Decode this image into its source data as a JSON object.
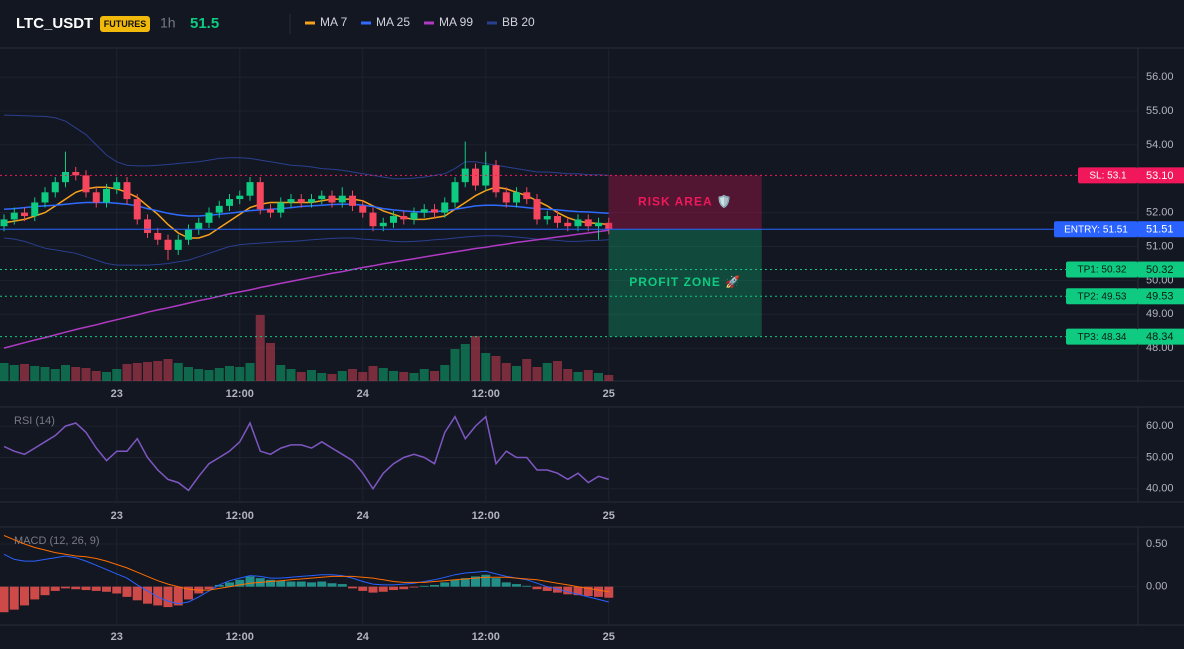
{
  "header": {
    "symbol": "LTC_USDT",
    "badge": "FUTURES",
    "interval": "1h",
    "price": "51.5"
  },
  "chart_data": [
    {
      "type": "candlestick",
      "categories": [
        null,
        null,
        null,
        null,
        null,
        null,
        null,
        null,
        null,
        null,
        null,
        "23",
        null,
        null,
        null,
        null,
        null,
        null,
        null,
        null,
        null,
        null,
        null,
        "12:00",
        null,
        null,
        null,
        null,
        null,
        null,
        null,
        null,
        null,
        null,
        null,
        "24",
        null,
        null,
        null,
        null,
        null,
        null,
        null,
        null,
        null,
        null,
        null,
        "12:00",
        null,
        null,
        null,
        null,
        null,
        null,
        null,
        null,
        null,
        null,
        null,
        "25"
      ],
      "open": [
        51.6,
        51.8,
        52.0,
        51.9,
        52.3,
        52.6,
        52.9,
        53.2,
        53.1,
        52.6,
        52.3,
        52.7,
        52.9,
        52.4,
        51.8,
        51.4,
        51.2,
        50.9,
        51.2,
        51.5,
        51.7,
        52.0,
        52.2,
        52.4,
        52.5,
        52.9,
        52.1,
        52.0,
        52.3,
        52.4,
        52.3,
        52.4,
        52.5,
        52.3,
        52.5,
        52.2,
        52.0,
        51.6,
        51.7,
        51.9,
        51.8,
        52.0,
        52.1,
        52.0,
        52.3,
        52.9,
        53.3,
        52.8,
        53.4,
        52.6,
        52.3,
        52.6,
        52.4,
        51.8,
        51.9,
        51.7,
        51.6,
        51.8,
        51.6,
        51.7
      ],
      "high": [
        51.95,
        52.15,
        52.15,
        52.45,
        52.75,
        53.05,
        53.8,
        53.35,
        53.25,
        52.75,
        52.85,
        53.05,
        53.05,
        52.55,
        51.95,
        51.55,
        51.35,
        51.35,
        51.65,
        51.85,
        52.15,
        52.35,
        52.55,
        52.65,
        53.05,
        53.05,
        52.25,
        52.45,
        52.55,
        52.55,
        52.55,
        52.65,
        52.65,
        52.75,
        52.65,
        52.35,
        52.15,
        51.85,
        52.05,
        52.05,
        52.15,
        52.25,
        52.25,
        52.45,
        53.05,
        54.1,
        53.45,
        53.8,
        53.55,
        52.75,
        52.75,
        52.75,
        52.55,
        52.05,
        52.05,
        51.85,
        51.95,
        51.95,
        51.85,
        51.85
      ],
      "low": [
        51.45,
        51.65,
        51.75,
        51.75,
        52.15,
        52.45,
        52.75,
        52.95,
        52.45,
        52.15,
        52.15,
        52.55,
        52.25,
        51.65,
        51.25,
        51.05,
        50.6,
        50.75,
        51.05,
        51.35,
        51.55,
        51.85,
        52.05,
        52.25,
        52.35,
        51.95,
        51.85,
        51.85,
        52.15,
        52.15,
        52.15,
        52.25,
        52.15,
        52.15,
        52.05,
        51.85,
        51.45,
        51.45,
        51.55,
        51.65,
        51.65,
        51.85,
        51.85,
        51.85,
        52.15,
        52.75,
        52.65,
        52.65,
        52.45,
        52.15,
        52.15,
        52.25,
        51.65,
        51.65,
        51.55,
        51.45,
        51.45,
        51.45,
        51.2,
        51.36
      ],
      "close": [
        51.8,
        52.0,
        51.9,
        52.3,
        52.6,
        52.9,
        53.2,
        53.1,
        52.6,
        52.3,
        52.7,
        52.9,
        52.4,
        51.8,
        51.4,
        51.2,
        50.9,
        51.2,
        51.5,
        51.7,
        52.0,
        52.2,
        52.4,
        52.5,
        52.9,
        52.1,
        52.0,
        52.3,
        52.4,
        52.3,
        52.4,
        52.5,
        52.3,
        52.5,
        52.2,
        52.0,
        51.6,
        51.7,
        51.9,
        51.8,
        52.0,
        52.1,
        52.0,
        52.3,
        52.9,
        53.3,
        52.8,
        53.4,
        52.6,
        52.3,
        52.6,
        52.4,
        51.8,
        51.9,
        51.7,
        51.6,
        51.8,
        51.6,
        51.7,
        51.51
      ],
      "up_color": "#0ecb81",
      "down_color": "#f6465d",
      "volume": [
        18,
        16,
        17,
        15,
        14,
        12,
        16,
        14,
        13,
        10,
        9,
        12,
        17,
        18,
        19,
        20,
        22,
        18,
        14,
        12,
        11,
        13,
        15,
        14,
        18,
        66,
        38,
        16,
        12,
        9,
        11,
        8,
        7,
        10,
        12,
        9,
        15,
        13,
        10,
        9,
        8,
        12,
        10,
        16,
        32,
        37,
        45,
        28,
        25,
        18,
        15,
        22,
        14,
        18,
        20,
        12,
        9,
        11,
        8,
        6
      ],
      "vlim": [
        0,
        100
      ],
      "series": [
        {
          "name": "MA 7",
          "color": "#f7a21b",
          "values": [
            51.7,
            51.75,
            51.8,
            51.9,
            52.0,
            52.2,
            52.4,
            52.6,
            52.7,
            52.75,
            52.75,
            52.7,
            52.6,
            52.45,
            52.2,
            51.95,
            51.65,
            51.4,
            51.25,
            51.25,
            51.35,
            51.55,
            51.75,
            51.95,
            52.15,
            52.25,
            52.3,
            52.3,
            52.3,
            52.3,
            52.3,
            52.35,
            52.4,
            52.4,
            52.4,
            52.35,
            52.2,
            52.05,
            51.95,
            51.85,
            51.8,
            51.8,
            51.85,
            51.9,
            52.1,
            52.3,
            52.5,
            52.65,
            52.75,
            52.7,
            52.6,
            52.5,
            52.35,
            52.2,
            52.0,
            51.85,
            51.75,
            51.7,
            51.68,
            51.65
          ]
        },
        {
          "name": "MA 25",
          "color": "#2f6bff",
          "values": [
            52.1,
            52.12,
            52.15,
            52.18,
            52.2,
            52.22,
            52.25,
            52.28,
            52.3,
            52.3,
            52.3,
            52.28,
            52.25,
            52.2,
            52.12,
            52.05,
            51.98,
            51.93,
            51.9,
            51.9,
            51.92,
            51.95,
            51.98,
            52.02,
            52.06,
            52.08,
            52.1,
            52.12,
            52.15,
            52.18,
            52.2,
            52.22,
            52.24,
            52.25,
            52.25,
            52.22,
            52.18,
            52.12,
            52.08,
            52.05,
            52.03,
            52.02,
            52.03,
            52.05,
            52.1,
            52.15,
            52.2,
            52.22,
            52.22,
            52.2,
            52.18,
            52.15,
            52.12,
            52.1,
            52.08,
            52.05,
            52.03,
            52.02,
            52.0,
            51.98
          ]
        },
        {
          "name": "MA 99",
          "color": "#b03ac4",
          "values": [
            48.0,
            48.08,
            48.16,
            48.24,
            48.31,
            48.39,
            48.47,
            48.55,
            48.62,
            48.69,
            48.77,
            48.84,
            48.91,
            48.98,
            49.06,
            49.13,
            49.19,
            49.26,
            49.33,
            49.4,
            49.46,
            49.53,
            49.6,
            49.66,
            49.72,
            49.79,
            49.85,
            49.91,
            49.97,
            50.03,
            50.09,
            50.15,
            50.21,
            50.26,
            50.32,
            50.38,
            50.43,
            50.49,
            50.54,
            50.59,
            50.64,
            50.69,
            50.74,
            50.79,
            50.84,
            50.89,
            50.94,
            50.98,
            51.03,
            51.07,
            51.12,
            51.16,
            51.2,
            51.24,
            51.28,
            51.32,
            51.36,
            51.4,
            51.44,
            51.48
          ]
        },
        {
          "name": "BB 20",
          "color": "#2a3f8f",
          "values": [
            54.88,
            54.87,
            54.86,
            54.85,
            54.84,
            54.8,
            54.7,
            54.5,
            54.3,
            54.0,
            53.7,
            53.5,
            53.4,
            53.38,
            53.38,
            53.4,
            53.42,
            53.45,
            53.48,
            53.5,
            53.55,
            53.6,
            53.62,
            53.62,
            53.6,
            53.55,
            53.5,
            53.45,
            53.4,
            53.38,
            53.35,
            53.3,
            53.28,
            53.25,
            53.2,
            53.15,
            53.1,
            53.05,
            53.0,
            53.0,
            53.02,
            53.05,
            53.1,
            53.15,
            53.3,
            53.5,
            53.5,
            53.45,
            53.4,
            53.35,
            53.3,
            53.25,
            53.2,
            53.2,
            53.18,
            53.15,
            53.15,
            53.12,
            53.12,
            53.1
          ],
          "lower": [
            51.25,
            51.22,
            51.15,
            51.05,
            50.95,
            50.9,
            50.85,
            50.8,
            50.7,
            50.6,
            50.5,
            50.45,
            50.45,
            50.45,
            50.45,
            50.47,
            50.5,
            50.55,
            50.6,
            50.7,
            50.8,
            50.9,
            51.0,
            51.05,
            51.08,
            51.1,
            51.12,
            51.14,
            51.15,
            51.17,
            51.2,
            51.22,
            51.24,
            51.25,
            51.25,
            51.22,
            51.2,
            51.18,
            51.15,
            51.14,
            51.15,
            51.17,
            51.2,
            51.22,
            51.25,
            51.28,
            51.3,
            51.32,
            51.32,
            51.3,
            51.28,
            51.25,
            51.22,
            51.2,
            51.18,
            51.15,
            51.15,
            51.17,
            51.18,
            51.2
          ]
        }
      ],
      "ylim": [
        47.03,
        56.86
      ],
      "yticks": [
        {
          "value": 48,
          "label": "48.00"
        },
        {
          "value": 49,
          "label": "49.00"
        },
        {
          "value": 50,
          "label": "50.00"
        },
        {
          "value": 51,
          "label": "51.00"
        },
        {
          "value": 52,
          "label": "52.00"
        },
        {
          "value": 54,
          "label": "54.00"
        },
        {
          "value": 55,
          "label": "55.00"
        },
        {
          "value": 56,
          "label": "56.00"
        }
      ],
      "levels": [
        {
          "label": "SL: 53.1",
          "value": 53.1,
          "value_label": "53.10",
          "color": "#f0185a",
          "dash": true
        },
        {
          "label": "ENTRY: 51.51",
          "value": 51.51,
          "value_label": "51.51",
          "color": "#2962ff",
          "dash": false
        },
        {
          "label": "TP1: 50.32",
          "value": 50.32,
          "value_label": "50.32",
          "color": "#0ecb81",
          "dash": true
        },
        {
          "label": "TP2: 49.53",
          "value": 49.53,
          "value_label": "49.53",
          "color": "#0ecb81",
          "dash": true
        },
        {
          "label": "TP3: 48.34",
          "value": 48.34,
          "value_label": "48.34",
          "color": "#0ecb81",
          "dash": true
        }
      ],
      "zones": [
        {
          "label": "RISK AREA 🛡️",
          "from": 53.1,
          "to": 51.51,
          "color": "rgba(200,20,80,0.35)",
          "text_color": "#f0185a"
        },
        {
          "label": "PROFIT ZONE 🚀",
          "from": 51.51,
          "to": 48.34,
          "color": "rgba(14,203,129,0.28)",
          "text_color": "#0ecb81"
        }
      ]
    },
    {
      "type": "line",
      "title": "RSI (14)",
      "series": [
        {
          "name": "RSI",
          "color": "#7e57c2",
          "values": [
            53.5,
            52,
            51,
            53,
            55,
            57,
            60,
            61,
            58,
            53,
            49,
            52,
            52,
            56,
            50,
            46,
            43,
            42,
            39.5,
            44,
            48,
            50,
            52,
            55,
            61,
            52,
            51,
            53,
            54,
            54,
            53,
            55,
            53,
            51,
            49,
            45,
            40,
            45,
            48,
            50,
            51,
            50,
            48,
            58,
            63,
            56,
            60,
            63,
            48,
            52,
            50,
            50,
            46,
            46,
            45,
            43,
            45,
            42,
            44,
            43
          ]
        }
      ],
      "ylim": [
        35.8,
        66.1
      ],
      "yticks": [
        {
          "value": 40,
          "label": "40.00"
        },
        {
          "value": 50,
          "label": "50.00"
        },
        {
          "value": 60,
          "label": "60.00"
        }
      ]
    },
    {
      "type": "macd",
      "title": "MACD (12, 26, 9)",
      "histogram": [
        -0.3,
        -0.27,
        -0.22,
        -0.15,
        -0.1,
        -0.05,
        -0.02,
        -0.03,
        -0.04,
        -0.05,
        -0.06,
        -0.08,
        -0.12,
        -0.16,
        -0.2,
        -0.22,
        -0.24,
        -0.22,
        -0.15,
        -0.08,
        -0.03,
        0.02,
        0.05,
        0.08,
        0.12,
        0.1,
        0.08,
        0.07,
        0.06,
        0.06,
        0.05,
        0.06,
        0.04,
        0.03,
        -0.02,
        -0.05,
        -0.07,
        -0.06,
        -0.04,
        -0.03,
        -0.01,
        0.01,
        0.02,
        0.05,
        0.08,
        0.1,
        0.12,
        0.14,
        0.1,
        0.05,
        0.03,
        0.01,
        -0.03,
        -0.05,
        -0.07,
        -0.09,
        -0.1,
        -0.11,
        -0.12,
        -0.13
      ],
      "pos_color": "#26a69a",
      "neg_color": "#ef5350",
      "series": [
        {
          "name": "MACD",
          "color": "#2962ff",
          "values": [
            0.38,
            0.32,
            0.3,
            0.3,
            0.32,
            0.34,
            0.36,
            0.34,
            0.3,
            0.25,
            0.2,
            0.15,
            0.1,
            0.02,
            -0.05,
            -0.12,
            -0.17,
            -0.2,
            -0.18,
            -0.12,
            -0.05,
            0.02,
            0.07,
            0.1,
            0.13,
            0.12,
            0.1,
            0.1,
            0.11,
            0.12,
            0.13,
            0.14,
            0.14,
            0.13,
            0.1,
            0.06,
            0.03,
            0.02,
            0.02,
            0.03,
            0.04,
            0.06,
            0.08,
            0.11,
            0.14,
            0.16,
            0.17,
            0.18,
            0.15,
            0.12,
            0.1,
            0.08,
            0.04,
            0.0,
            -0.03,
            -0.06,
            -0.09,
            -0.12,
            -0.15,
            -0.18
          ]
        },
        {
          "name": "Signal",
          "color": "#ff6d00",
          "values": [
            0.6,
            0.55,
            0.5,
            0.46,
            0.43,
            0.4,
            0.38,
            0.36,
            0.35,
            0.33,
            0.3,
            0.26,
            0.22,
            0.17,
            0.12,
            0.07,
            0.03,
            0.0,
            -0.03,
            -0.04,
            -0.04,
            -0.02,
            0.0,
            0.02,
            0.04,
            0.05,
            0.06,
            0.07,
            0.08,
            0.09,
            0.1,
            0.11,
            0.12,
            0.12,
            0.12,
            0.11,
            0.1,
            0.08,
            0.06,
            0.05,
            0.05,
            0.05,
            0.06,
            0.07,
            0.08,
            0.09,
            0.1,
            0.11,
            0.11,
            0.11,
            0.1,
            0.09,
            0.08,
            0.06,
            0.04,
            0.02,
            0.0,
            -0.02,
            -0.04,
            -0.06
          ]
        }
      ],
      "ylim": [
        -0.45,
        0.7
      ],
      "yticks": [
        {
          "value": 0,
          "label": "0.00"
        },
        {
          "value": 0.5,
          "label": "0.50"
        }
      ]
    }
  ]
}
